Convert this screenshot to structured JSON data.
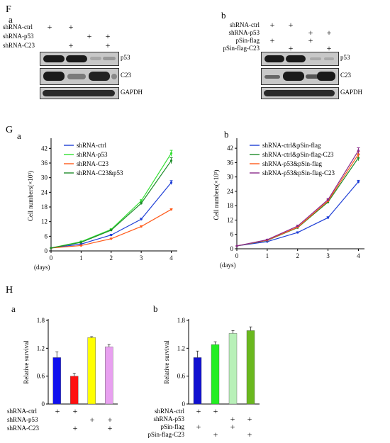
{
  "panel_F": {
    "letter": "F",
    "a": {
      "letter": "a",
      "rows": [
        {
          "label": "shRNA-ctrl",
          "signs": [
            "+",
            "+",
            "",
            ""
          ]
        },
        {
          "label": "shRNA-p53",
          "signs": [
            "",
            "",
            "+",
            "+"
          ]
        },
        {
          "label": "shRNA-C23",
          "signs": [
            "",
            "+",
            "",
            "+"
          ]
        }
      ],
      "blots": [
        "p53",
        "C23",
        "GAPDH"
      ]
    },
    "b": {
      "letter": "b",
      "rows": [
        {
          "label": "shRNA-ctrl",
          "signs": [
            "+",
            "+",
            "",
            ""
          ]
        },
        {
          "label": "shRNA-p53",
          "signs": [
            "",
            "",
            "+",
            "+"
          ]
        },
        {
          "label": "pSin-flag",
          "signs": [
            "+",
            "",
            "+",
            ""
          ]
        },
        {
          "label": "pSin-flag-C23",
          "signs": [
            "",
            "+",
            "",
            "+"
          ]
        }
      ],
      "blots": [
        "p53",
        "C23",
        "GAPDH"
      ]
    }
  },
  "panel_G": {
    "letter": "G",
    "a_letter": "a",
    "b_letter": "b"
  },
  "panel_H": {
    "letter": "H",
    "a_letter": "a",
    "b_letter": "b",
    "a_rows": [
      {
        "label": "shRNA-ctrl",
        "signs": [
          "+",
          "+",
          "",
          ""
        ]
      },
      {
        "label": "shRNA-p53",
        "signs": [
          "",
          "",
          "+",
          "+"
        ]
      },
      {
        "label": "shRNA-C23",
        "signs": [
          "",
          "+",
          "",
          "+"
        ]
      }
    ],
    "b_rows": [
      {
        "label": "shRNA-ctrl",
        "signs": [
          "+",
          "+",
          "",
          ""
        ]
      },
      {
        "label": "shRNA-p53",
        "signs": [
          "",
          "",
          "+",
          "+"
        ]
      },
      {
        "label": "pSin-flag",
        "signs": [
          "+",
          "",
          "+",
          ""
        ]
      },
      {
        "label": "pSin-flag-C23",
        "signs": [
          "",
          "+",
          "",
          "+"
        ]
      }
    ]
  },
  "chart_data": [
    {
      "id": "Ga",
      "type": "line",
      "ylabel": "Cell numbers(×10³)",
      "xlabel": "(days)",
      "x": [
        0,
        1,
        2,
        3,
        4
      ],
      "xlim": [
        0,
        4.2
      ],
      "ylim": [
        0,
        45
      ],
      "yticks": [
        0,
        6,
        12,
        18,
        24,
        30,
        36,
        42
      ],
      "legend": "top-left",
      "series": [
        {
          "name": "shRNA-ctrl",
          "color": "#1f3fd6",
          "values": [
            1.2,
            2.8,
            6.5,
            13,
            28
          ],
          "err": [
            0,
            0.2,
            0.3,
            0.4,
            0.8
          ]
        },
        {
          "name": "shRNA-p53",
          "color": "#33e033",
          "values": [
            1.2,
            3.8,
            8.8,
            20.5,
            40
          ],
          "err": [
            0,
            0.2,
            0.3,
            0.5,
            1.2
          ]
        },
        {
          "name": "shRNA-C23",
          "color": "#ff5a1a",
          "values": [
            1.2,
            2.2,
            5.0,
            10.0,
            17
          ],
          "err": [
            0,
            0.2,
            0.2,
            0.3,
            0.3
          ]
        },
        {
          "name": "shRNA-C23&p53",
          "color": "#1e8c2a",
          "values": [
            1.2,
            3.5,
            8.5,
            19.5,
            37
          ],
          "err": [
            0,
            0.2,
            0.3,
            0.5,
            1.2
          ]
        }
      ]
    },
    {
      "id": "Gb",
      "type": "line",
      "ylabel": "Cell numbers(×10³)",
      "xlabel": "(days)",
      "x": [
        0,
        1,
        2,
        3,
        4
      ],
      "xlim": [
        0,
        4.2
      ],
      "ylim": [
        0,
        45
      ],
      "yticks": [
        0,
        6,
        12,
        18,
        24,
        30,
        36,
        42
      ],
      "legend": "top-left",
      "series": [
        {
          "name": "shRNA-ctrl&pSin-flag",
          "color": "#1f3fd6",
          "values": [
            1.2,
            3.0,
            6.8,
            13,
            28
          ],
          "err": [
            0,
            0.2,
            0.3,
            0.4,
            0.6
          ]
        },
        {
          "name": "shRNA-ctrl&pSin-flag-C23",
          "color": "#1e8c2a",
          "values": [
            1.2,
            3.5,
            8.8,
            19.5,
            38
          ],
          "err": [
            0,
            0.2,
            0.4,
            0.5,
            1.2
          ]
        },
        {
          "name": "shRNA-p53&pSin-flag",
          "color": "#ff5a1a",
          "values": [
            1.2,
            3.6,
            9.0,
            20.0,
            39.5
          ],
          "err": [
            0,
            0.2,
            0.4,
            0.5,
            1.2
          ]
        },
        {
          "name": "shRNA-p53&pSin-flag-C23",
          "color": "#8a2a8a",
          "values": [
            1.2,
            3.8,
            9.5,
            20.5,
            41
          ],
          "err": [
            0,
            0.2,
            0.4,
            0.5,
            1.2
          ]
        }
      ]
    },
    {
      "id": "Ha",
      "type": "bar",
      "ylabel": "Relative survival",
      "ylim": [
        0,
        1.8
      ],
      "yticks": [
        0,
        0.6,
        1.2,
        1.8
      ],
      "values": [
        1.0,
        0.6,
        1.43,
        1.23
      ],
      "err": [
        0.12,
        0.06,
        0.02,
        0.05
      ],
      "colors": [
        "#1010ee",
        "#ff1010",
        "#ffff00",
        "#e8a0f0"
      ]
    },
    {
      "id": "Hb",
      "type": "bar",
      "ylabel": "Relative survival",
      "ylim": [
        0,
        1.8
      ],
      "yticks": [
        0,
        0.6,
        1.2,
        1.8
      ],
      "values": [
        1.0,
        1.28,
        1.52,
        1.58
      ],
      "err": [
        0.14,
        0.06,
        0.06,
        0.08
      ],
      "colors": [
        "#1010d0",
        "#22ee22",
        "#b8f0b8",
        "#6ab81e"
      ]
    }
  ]
}
